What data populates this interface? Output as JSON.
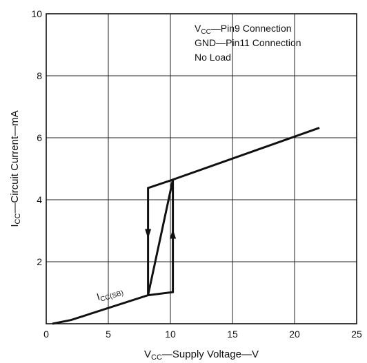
{
  "chart_data": {
    "type": "line",
    "title": "",
    "xlabel": {
      "main": "V",
      "sub": "CC",
      "rest": "—Supply Voltage—V"
    },
    "ylabel": {
      "main": "I",
      "sub": "CC",
      "rest": "—Circuit Current—mA"
    },
    "xlim": [
      0,
      25
    ],
    "ylim": [
      0,
      10
    ],
    "x_ticks": [
      "0",
      "5",
      "10",
      "15",
      "20",
      "25"
    ],
    "y_ticks": [
      "2",
      "4",
      "6",
      "8",
      "10"
    ],
    "grid": true,
    "annotations": {
      "line1": {
        "main": "V",
        "sub": "CC",
        "rest": "—Pin9 Connection"
      },
      "line2": "GND—Pin11 Connection",
      "line3": "No Load",
      "curve_label": {
        "main": "I",
        "sub": "CC(SB)"
      }
    },
    "series": [
      {
        "points": [
          {
            "x": 0.5,
            "y": 0.0
          },
          {
            "x": 2.0,
            "y": 0.12
          },
          {
            "x": 8.2,
            "y": 0.92
          },
          {
            "x": 10.2,
            "y": 1.02
          },
          {
            "x": 10.2,
            "y": 4.65
          },
          {
            "x": 8.2,
            "y": 4.38
          },
          {
            "x": 8.2,
            "y": 0.92
          },
          {
            "x": 10.2,
            "y": 4.65
          },
          {
            "x": 22.0,
            "y": 6.32
          }
        ]
      }
    ],
    "arrows": [
      {
        "x": 8.2,
        "y": 2.9,
        "direction": "down"
      },
      {
        "x": 10.2,
        "y": 2.9,
        "direction": "up"
      }
    ]
  }
}
